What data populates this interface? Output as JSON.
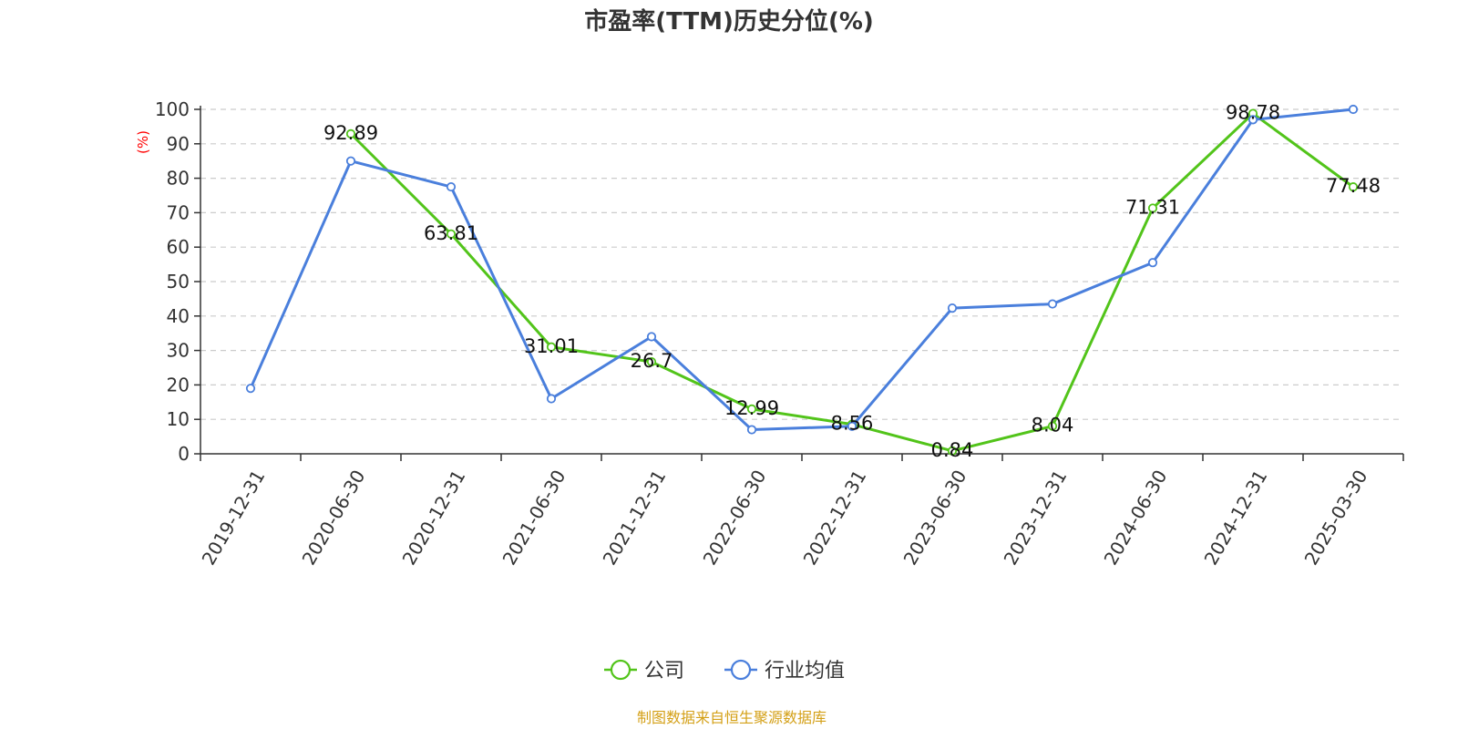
{
  "chart_data": {
    "type": "line",
    "title": "市盈率(TTM)历史分位(%)",
    "ylabel": "(%)",
    "ylim": [
      0,
      100
    ],
    "yticks": [
      0,
      10,
      20,
      30,
      40,
      50,
      60,
      70,
      80,
      90,
      100
    ],
    "grid": true,
    "legend_position": "bottom-center",
    "x": [
      "2019-12-31",
      "2020-06-30",
      "2020-12-31",
      "2021-06-30",
      "2021-12-31",
      "2022-06-30",
      "2022-12-31",
      "2023-06-30",
      "2023-12-31",
      "2024-06-30",
      "2024-12-31",
      "2025-03-30"
    ],
    "series": [
      {
        "name": "公司",
        "color": "#52c41a",
        "show_labels": true,
        "values": [
          null,
          92.89,
          63.81,
          31.01,
          26.7,
          12.99,
          8.56,
          0.84,
          8.04,
          71.31,
          98.78,
          77.48
        ],
        "labels": [
          "",
          "92.89",
          "63.81",
          "31.01",
          "26.7",
          "12.99",
          "8.56",
          "0.84",
          "8.04",
          "71.31",
          "98.78",
          "77.48"
        ]
      },
      {
        "name": "行业均值",
        "color": "#4a7fdc",
        "show_labels": false,
        "values": [
          19,
          85,
          77.5,
          16,
          34,
          7,
          8,
          42.3,
          43.5,
          55.5,
          97,
          100
        ]
      }
    ],
    "source": "制图数据来自恒生聚源数据库",
    "colors": {
      "unit_label": "#ff0000",
      "source": "#d4a017",
      "axis": "#333333",
      "grid": "#cccccc"
    }
  }
}
